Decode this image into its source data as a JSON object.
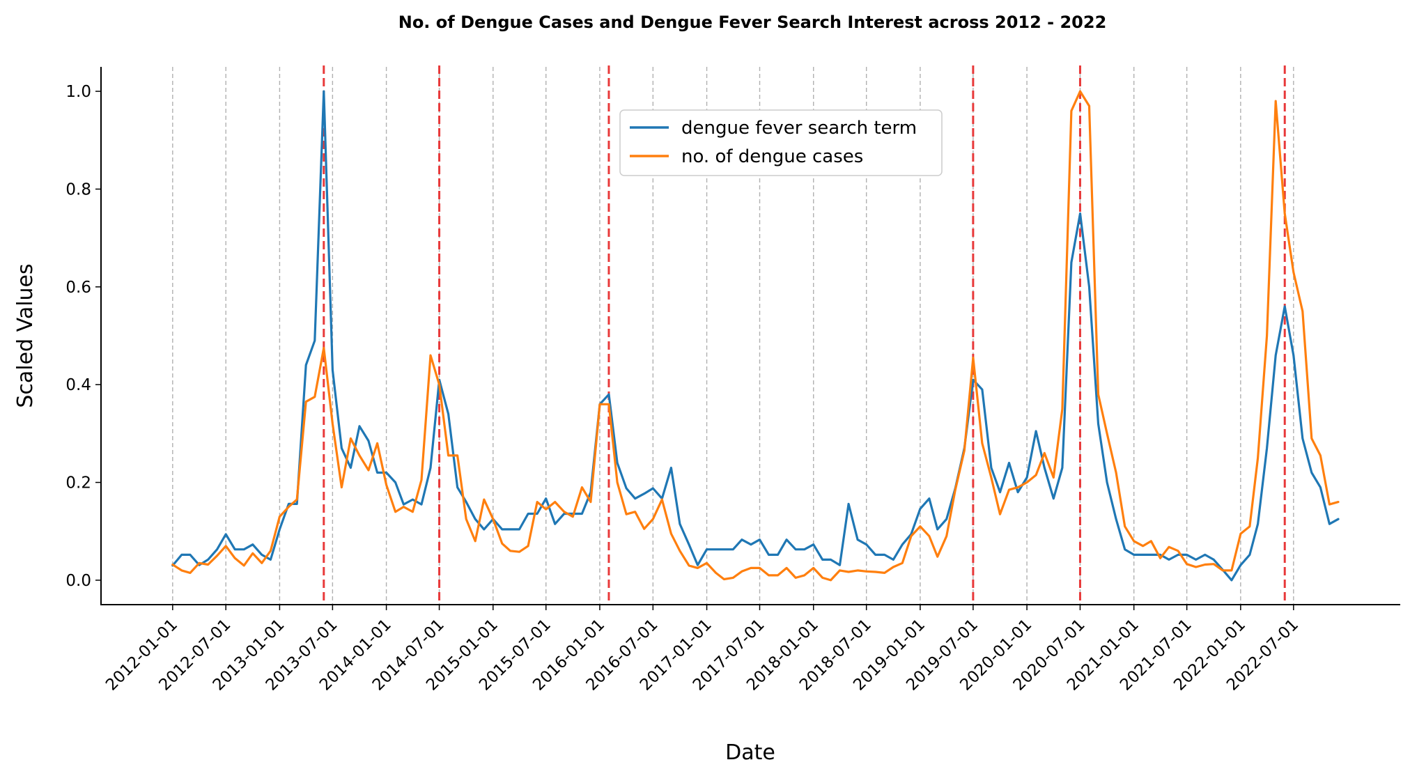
{
  "chart_data": {
    "type": "line",
    "title": "No. of Dengue Cases and Dengue Fever Search Interest across 2012 - 2022",
    "xlabel": "Date",
    "ylabel": "Scaled Values",
    "ylim": [
      -0.05,
      1.05
    ],
    "y_ticks": [
      "0.0",
      "0.2",
      "0.4",
      "0.6",
      "0.8",
      "1.0"
    ],
    "x_ticks": [
      "2012-01-01",
      "2012-07-01",
      "2013-01-01",
      "2013-07-01",
      "2014-01-01",
      "2014-07-01",
      "2015-01-01",
      "2015-07-01",
      "2016-01-01",
      "2016-07-01",
      "2017-01-01",
      "2017-07-01",
      "2018-01-01",
      "2018-07-01",
      "2019-01-01",
      "2019-07-01",
      "2020-01-01",
      "2020-07-01",
      "2021-01-01",
      "2021-07-01",
      "2022-01-01",
      "2022-07-01"
    ],
    "x_range": [
      "2011-05-01",
      "2023-07-01"
    ],
    "grid": "vertical dashed at x ticks",
    "legend_position": "top-center",
    "peak_markers": [
      "2013-06-01",
      "2014-07-01",
      "2016-02-01",
      "2019-07-01",
      "2020-07-01",
      "2022-06-01"
    ],
    "series": [
      {
        "name": "dengue fever search term",
        "color": "#1f77b4",
        "x": [
          "2012-01-01",
          "2012-02-01",
          "2012-03-01",
          "2012-04-01",
          "2012-05-01",
          "2012-06-01",
          "2012-07-01",
          "2012-08-01",
          "2012-09-01",
          "2012-10-01",
          "2012-11-01",
          "2012-12-01",
          "2013-01-01",
          "2013-02-01",
          "2013-03-01",
          "2013-04-01",
          "2013-05-01",
          "2013-06-01",
          "2013-07-01",
          "2013-08-01",
          "2013-09-01",
          "2013-10-01",
          "2013-11-01",
          "2013-12-01",
          "2014-01-01",
          "2014-02-01",
          "2014-03-01",
          "2014-04-01",
          "2014-05-01",
          "2014-06-01",
          "2014-07-01",
          "2014-08-01",
          "2014-09-01",
          "2014-10-01",
          "2014-11-01",
          "2014-12-01",
          "2015-01-01",
          "2015-02-01",
          "2015-03-01",
          "2015-04-01",
          "2015-05-01",
          "2015-06-01",
          "2015-07-01",
          "2015-08-01",
          "2015-09-01",
          "2015-10-01",
          "2015-11-01",
          "2015-12-01",
          "2016-01-01",
          "2016-02-01",
          "2016-03-01",
          "2016-04-01",
          "2016-05-01",
          "2016-06-01",
          "2016-07-01",
          "2016-08-01",
          "2016-09-01",
          "2016-10-01",
          "2016-11-01",
          "2016-12-01",
          "2017-01-01",
          "2017-02-01",
          "2017-03-01",
          "2017-04-01",
          "2017-05-01",
          "2017-06-01",
          "2017-07-01",
          "2017-08-01",
          "2017-09-01",
          "2017-10-01",
          "2017-11-01",
          "2017-12-01",
          "2018-01-01",
          "2018-02-01",
          "2018-03-01",
          "2018-04-01",
          "2018-05-01",
          "2018-06-01",
          "2018-07-01",
          "2018-08-01",
          "2018-09-01",
          "2018-10-01",
          "2018-11-01",
          "2018-12-01",
          "2019-01-01",
          "2019-02-01",
          "2019-03-01",
          "2019-04-01",
          "2019-05-01",
          "2019-06-01",
          "2019-07-01",
          "2019-08-01",
          "2019-09-01",
          "2019-10-01",
          "2019-11-01",
          "2019-12-01",
          "2020-01-01",
          "2020-02-01",
          "2020-03-01",
          "2020-04-01",
          "2020-05-01",
          "2020-06-01",
          "2020-07-01",
          "2020-08-01",
          "2020-09-01",
          "2020-10-01",
          "2020-11-01",
          "2020-12-01",
          "2021-01-01",
          "2021-02-01",
          "2021-03-01",
          "2021-04-01",
          "2021-05-01",
          "2021-06-01",
          "2021-07-01",
          "2021-08-01",
          "2021-09-01",
          "2021-10-01",
          "2021-11-01",
          "2021-12-01",
          "2022-01-01",
          "2022-02-01",
          "2022-03-01",
          "2022-04-01",
          "2022-05-01",
          "2022-06-01",
          "2022-07-01",
          "2022-08-01",
          "2022-09-01",
          "2022-10-01",
          "2022-11-01",
          "2022-12-01"
        ],
        "y": [
          0.03,
          0.052,
          0.052,
          0.031,
          0.042,
          0.063,
          0.094,
          0.063,
          0.063,
          0.073,
          0.052,
          0.042,
          0.104,
          0.156,
          0.156,
          0.44,
          0.49,
          1.0,
          0.43,
          0.27,
          0.23,
          0.315,
          0.285,
          0.22,
          0.22,
          0.2,
          0.155,
          0.165,
          0.155,
          0.23,
          0.41,
          0.34,
          0.19,
          0.16,
          0.125,
          0.104,
          0.125,
          0.104,
          0.104,
          0.104,
          0.136,
          0.136,
          0.167,
          0.115,
          0.136,
          0.136,
          0.136,
          0.18,
          0.36,
          0.38,
          0.24,
          0.188,
          0.167,
          0.177,
          0.188,
          0.167,
          0.23,
          0.115,
          0.073,
          0.031,
          0.063,
          0.063,
          0.063,
          0.063,
          0.083,
          0.073,
          0.083,
          0.052,
          0.052,
          0.083,
          0.063,
          0.063,
          0.073,
          0.042,
          0.042,
          0.031,
          0.156,
          0.083,
          0.073,
          0.052,
          0.052,
          0.042,
          0.073,
          0.094,
          0.146,
          0.167,
          0.104,
          0.125,
          0.188,
          0.27,
          0.41,
          0.39,
          0.23,
          0.18,
          0.24,
          0.18,
          0.21,
          0.305,
          0.23,
          0.167,
          0.23,
          0.65,
          0.75,
          0.6,
          0.32,
          0.2,
          0.125,
          0.063,
          0.052,
          0.052,
          0.052,
          0.052,
          0.042,
          0.052,
          0.052,
          0.042,
          0.052,
          0.042,
          0.021,
          0.0,
          0.031,
          0.052,
          0.115,
          0.27,
          0.46,
          0.56,
          0.46,
          0.29,
          0.22,
          0.19,
          0.115,
          0.125
        ]
      },
      {
        "name": "no. of dengue cases",
        "color": "#ff7f0e",
        "x": [
          "2012-01-01",
          "2012-02-01",
          "2012-03-01",
          "2012-04-01",
          "2012-05-01",
          "2012-06-01",
          "2012-07-01",
          "2012-08-01",
          "2012-09-01",
          "2012-10-01",
          "2012-11-01",
          "2012-12-01",
          "2013-01-01",
          "2013-02-01",
          "2013-03-01",
          "2013-04-01",
          "2013-05-01",
          "2013-06-01",
          "2013-07-01",
          "2013-08-01",
          "2013-09-01",
          "2013-10-01",
          "2013-11-01",
          "2013-12-01",
          "2014-01-01",
          "2014-02-01",
          "2014-03-01",
          "2014-04-01",
          "2014-05-01",
          "2014-06-01",
          "2014-07-01",
          "2014-08-01",
          "2014-09-01",
          "2014-10-01",
          "2014-11-01",
          "2014-12-01",
          "2015-01-01",
          "2015-02-01",
          "2015-03-01",
          "2015-04-01",
          "2015-05-01",
          "2015-06-01",
          "2015-07-01",
          "2015-08-01",
          "2015-09-01",
          "2015-10-01",
          "2015-11-01",
          "2015-12-01",
          "2016-01-01",
          "2016-02-01",
          "2016-03-01",
          "2016-04-01",
          "2016-05-01",
          "2016-06-01",
          "2016-07-01",
          "2016-08-01",
          "2016-09-01",
          "2016-10-01",
          "2016-11-01",
          "2016-12-01",
          "2017-01-01",
          "2017-02-01",
          "2017-03-01",
          "2017-04-01",
          "2017-05-01",
          "2017-06-01",
          "2017-07-01",
          "2017-08-01",
          "2017-09-01",
          "2017-10-01",
          "2017-11-01",
          "2017-12-01",
          "2018-01-01",
          "2018-02-01",
          "2018-03-01",
          "2018-04-01",
          "2018-05-01",
          "2018-06-01",
          "2018-07-01",
          "2018-08-01",
          "2018-09-01",
          "2018-10-01",
          "2018-11-01",
          "2018-12-01",
          "2019-01-01",
          "2019-02-01",
          "2019-03-01",
          "2019-04-01",
          "2019-05-01",
          "2019-06-01",
          "2019-07-01",
          "2019-08-01",
          "2019-09-01",
          "2019-10-01",
          "2019-11-01",
          "2019-12-01",
          "2020-01-01",
          "2020-02-01",
          "2020-03-01",
          "2020-04-01",
          "2020-05-01",
          "2020-06-01",
          "2020-07-01",
          "2020-08-01",
          "2020-09-01",
          "2020-10-01",
          "2020-11-01",
          "2020-12-01",
          "2021-01-01",
          "2021-02-01",
          "2021-03-01",
          "2021-04-01",
          "2021-05-01",
          "2021-06-01",
          "2021-07-01",
          "2021-08-01",
          "2021-09-01",
          "2021-10-01",
          "2021-11-01",
          "2021-12-01",
          "2022-01-01",
          "2022-02-01",
          "2022-03-01",
          "2022-04-01",
          "2022-05-01",
          "2022-06-01",
          "2022-07-01",
          "2022-08-01",
          "2022-09-01",
          "2022-10-01",
          "2022-11-01",
          "2022-12-01"
        ],
        "y": [
          0.032,
          0.02,
          0.015,
          0.035,
          0.032,
          0.05,
          0.07,
          0.045,
          0.03,
          0.055,
          0.035,
          0.06,
          0.13,
          0.15,
          0.165,
          0.365,
          0.375,
          0.475,
          0.32,
          0.19,
          0.29,
          0.255,
          0.225,
          0.28,
          0.195,
          0.14,
          0.15,
          0.14,
          0.205,
          0.46,
          0.4,
          0.255,
          0.255,
          0.125,
          0.08,
          0.165,
          0.125,
          0.075,
          0.06,
          0.058,
          0.07,
          0.16,
          0.145,
          0.16,
          0.14,
          0.13,
          0.19,
          0.16,
          0.36,
          0.36,
          0.2,
          0.135,
          0.14,
          0.105,
          0.125,
          0.165,
          0.095,
          0.06,
          0.03,
          0.025,
          0.035,
          0.015,
          0.002,
          0.005,
          0.018,
          0.025,
          0.025,
          0.01,
          0.01,
          0.025,
          0.005,
          0.01,
          0.025,
          0.005,
          0.0,
          0.02,
          0.017,
          0.02,
          0.018,
          0.017,
          0.015,
          0.027,
          0.035,
          0.09,
          0.11,
          0.09,
          0.048,
          0.09,
          0.185,
          0.265,
          0.455,
          0.28,
          0.21,
          0.135,
          0.185,
          0.19,
          0.2,
          0.215,
          0.26,
          0.21,
          0.35,
          0.96,
          1.0,
          0.97,
          0.38,
          0.3,
          0.22,
          0.11,
          0.08,
          0.07,
          0.08,
          0.045,
          0.068,
          0.06,
          0.033,
          0.027,
          0.032,
          0.033,
          0.02,
          0.02,
          0.095,
          0.11,
          0.25,
          0.5,
          0.98,
          0.75,
          0.63,
          0.55,
          0.29,
          0.255,
          0.155,
          0.16
        ]
      }
    ]
  }
}
